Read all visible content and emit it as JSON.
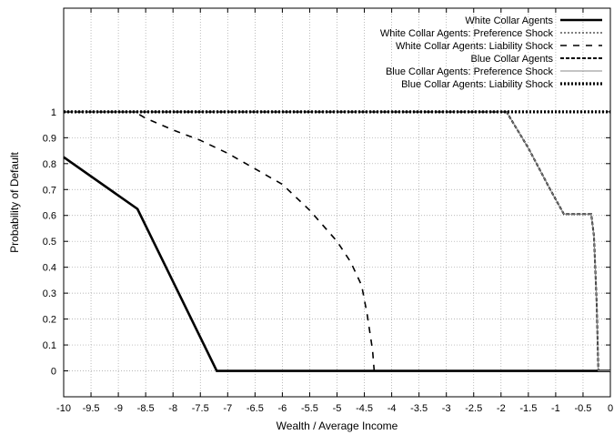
{
  "chart_data": {
    "type": "line",
    "xlabel": "Wealth / Average Income",
    "ylabel": "Probability of Default",
    "xlim": [
      -10,
      0
    ],
    "ylim": [
      -0.1,
      1.4
    ],
    "grid": true,
    "legend_position": "top-right",
    "x_ticks": [
      -10,
      -9.5,
      -9,
      -8.5,
      -8,
      -7.5,
      -7,
      -6.5,
      -6,
      -5.5,
      -5,
      -4.5,
      -4,
      -3.5,
      -3,
      -2.5,
      -2,
      -1.5,
      -1,
      -0.5,
      0
    ],
    "x_tick_labels": [
      "-10",
      "-9.5",
      "-9",
      "-8.5",
      "-8",
      "-7.5",
      "-7",
      "-6.5",
      "-6",
      "-5.5",
      "-5",
      "-4.5",
      "-4",
      "-3.5",
      "-3",
      "-2.5",
      "-2",
      "-1.5",
      "-1",
      "-0.5",
      "0"
    ],
    "y_ticks": [
      0,
      0.1,
      0.2,
      0.3,
      0.4,
      0.5,
      0.6,
      0.7,
      0.8,
      0.9,
      1
    ],
    "y_tick_labels": [
      "0",
      "0.1",
      "0.2",
      "0.3",
      "0.4",
      "0.5",
      "0.6",
      "0.7",
      "0.8",
      "0.9",
      "1"
    ],
    "series": [
      {
        "name": "White Collar Agents",
        "color": "#000000",
        "style": "solid-thick",
        "x": [
          -10,
          -8.65,
          -7.2,
          0
        ],
        "y": [
          0.825,
          0.625,
          0,
          0
        ]
      },
      {
        "name": "White Collar Agents: Preference Shock",
        "color": "#000000",
        "style": "dotted-thin",
        "x": [
          -10,
          -8.7,
          -4.3,
          0
        ],
        "y": [
          1,
          1,
          1,
          1
        ]
      },
      {
        "name": "White Collar Agents: Liability Shock",
        "color": "#000000",
        "style": "dashed-long",
        "x": [
          -10,
          -8.7,
          -8.5,
          -8,
          -7.5,
          -7,
          -6.5,
          -6,
          -5.5,
          -5,
          -4.75,
          -4.55,
          -4.45,
          -4.35,
          -4.32
        ],
        "y": [
          1,
          1,
          0.975,
          0.93,
          0.89,
          0.84,
          0.78,
          0.72,
          0.62,
          0.5,
          0.42,
          0.33,
          0.22,
          0.08,
          0
        ]
      },
      {
        "name": "Blue Collar Agents",
        "color": "#000000",
        "style": "dashed-short",
        "x": [
          -10,
          -1.9,
          -1.7,
          -1.5,
          -1.3,
          -1.1,
          -0.85,
          -0.35,
          -0.3,
          -0.25,
          -0.22,
          0
        ],
        "y": [
          1,
          1,
          0.93,
          0.86,
          0.78,
          0.7,
          0.605,
          0.605,
          0.52,
          0.26,
          0,
          0
        ]
      },
      {
        "name": "Blue Collar Agents: Preference Shock",
        "color": "#888888",
        "style": "solid-thin",
        "x": [
          -10,
          -1.9,
          -1.7,
          -1.5,
          -1.3,
          -1.1,
          -0.85,
          -0.35,
          -0.3,
          -0.25,
          -0.22,
          0
        ],
        "y": [
          1,
          1,
          0.93,
          0.86,
          0.78,
          0.7,
          0.605,
          0.605,
          0.52,
          0.26,
          0,
          0
        ]
      },
      {
        "name": "Blue Collar Agents: Liability Shock",
        "color": "#000000",
        "style": "dotted-thick",
        "x": [
          -10,
          0
        ],
        "y": [
          1,
          1
        ]
      }
    ]
  }
}
